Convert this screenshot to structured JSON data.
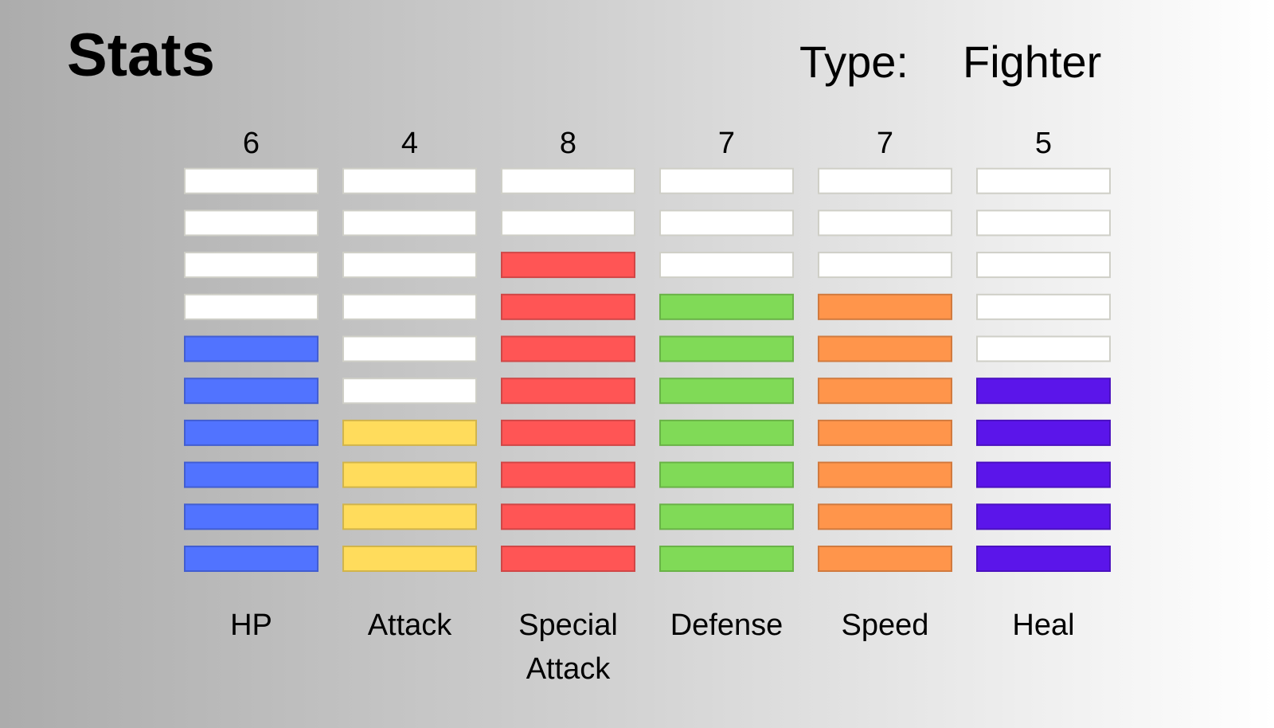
{
  "header": {
    "title": "Stats",
    "type_label": "Type:",
    "type_value": "Fighter"
  },
  "chart_data": {
    "type": "bar",
    "max_segments": 10,
    "categories": [
      "HP",
      "Attack",
      "Special\nAttack",
      "Defense",
      "Speed",
      "Heal"
    ],
    "values": [
      6,
      4,
      8,
      7,
      7,
      5
    ],
    "colors": [
      "#5173ff",
      "#ffdc5c",
      "#ff5555",
      "#80da57",
      "#ff954b",
      "#5b15ea"
    ],
    "empty_color": "#ffffff"
  }
}
